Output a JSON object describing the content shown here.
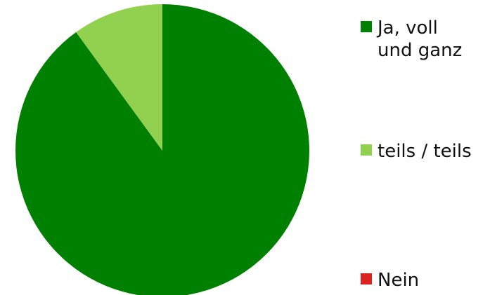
{
  "chart_data": {
    "type": "pie",
    "title": "",
    "categories": [
      "Ja, voll und ganz",
      "teils / teils",
      "Nein"
    ],
    "values": [
      90,
      10,
      0
    ],
    "colors": [
      "#008000",
      "#92d050",
      "#dd2222"
    ],
    "legend": {
      "placement": "right",
      "entries": [
        {
          "lines": [
            "Ja, voll",
            "und ganz"
          ],
          "color": "#008000"
        },
        {
          "lines": [
            "teils / teils"
          ],
          "color": "#92d050"
        },
        {
          "lines": [
            "Nein"
          ],
          "color": "#dd2222"
        }
      ]
    }
  }
}
